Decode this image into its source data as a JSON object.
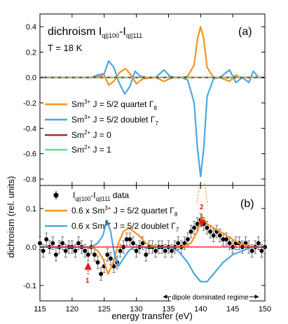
{
  "chart_data": [
    {
      "panel": "a",
      "type": "line",
      "panel_label": "(a)",
      "annotations": {
        "title": {
          "main": "dichroism I",
          "sub1": "q||100",
          "mid": "-I",
          "sub2": "q||111"
        },
        "temperature": "T = 18 K"
      },
      "xlim": [
        115,
        150
      ],
      "ylim": [
        -0.85,
        0.5
      ],
      "yticks": [
        "0.4",
        "0.2",
        "0.0",
        "-0.2",
        "-0.4",
        "-0.6",
        "-0.8"
      ],
      "ytick_values": [
        0.4,
        0.2,
        0.0,
        -0.2,
        -0.4,
        -0.6,
        -0.8
      ],
      "legend": [
        {
          "prefix": "Sm",
          "sup": "3+",
          "text": " J = 5/2 quartet Γ",
          "sub": "8",
          "color": "#f7931e"
        },
        {
          "prefix": "Sm",
          "sup": "3+",
          "text": " J = 5/2 doublet Γ",
          "sub": "7",
          "color": "#4aa8e0"
        },
        {
          "prefix": "Sm",
          "sup": "2+",
          "text": " J = 0",
          "sub": "",
          "color": "#a52a2a"
        },
        {
          "prefix": "Sm",
          "sup": "2+",
          "text": " J = 1",
          "sub": "",
          "color": "#66dd88"
        }
      ],
      "series": [
        {
          "name": "Sm3+ J = 5/2 quartet Γ8",
          "color": "#f7931e",
          "x": [
            115,
            123,
            124,
            125,
            125.7,
            126.5,
            127.4,
            128.3,
            129.2,
            130,
            131,
            133,
            134.3,
            135.2,
            136,
            137,
            138,
            139,
            139.5,
            140,
            140.5,
            141,
            142,
            143,
            144.5,
            145.5,
            146,
            147,
            148,
            150
          ],
          "y": [
            0,
            0,
            0.01,
            0.02,
            -0.06,
            -0.03,
            0.04,
            0.07,
            0.02,
            -0.05,
            -0.01,
            0,
            -0.03,
            -0.01,
            0,
            0,
            0.01,
            0.1,
            0.3,
            0.4,
            0.3,
            0.08,
            0,
            0,
            -0.03,
            0.02,
            0,
            0,
            0,
            0
          ]
        },
        {
          "name": "Sm3+ J = 5/2 doublet Γ7",
          "color": "#4aa8e0",
          "x": [
            115,
            123,
            124,
            125,
            125.7,
            126.5,
            127.3,
            128.2,
            129,
            129.8,
            130.6,
            131.5,
            133,
            134.3,
            135.2,
            136,
            137,
            138,
            139,
            139.5,
            140,
            140.5,
            141,
            142,
            143,
            144.5,
            145.5,
            146.5,
            147.5,
            148.2,
            149,
            150
          ],
          "y": [
            0,
            0,
            0.02,
            0.03,
            0.13,
            0.08,
            -0.04,
            -0.13,
            -0.07,
            0.05,
            0.01,
            0,
            0,
            0.06,
            0.01,
            0,
            0,
            -0.02,
            -0.2,
            -0.55,
            -0.78,
            -0.55,
            -0.15,
            -0.01,
            0,
            0.06,
            -0.04,
            0,
            -0.04,
            0.05,
            0,
            0
          ]
        },
        {
          "name": "Sm2+ J = 0",
          "color": "#a52a2a",
          "x": [
            115,
            150
          ],
          "y": [
            0,
            0
          ]
        },
        {
          "name": "Sm2+ J = 1",
          "color": "#66dd88",
          "x": [
            115,
            150
          ],
          "y": [
            0,
            0
          ]
        }
      ]
    },
    {
      "panel": "b",
      "type": "scatter",
      "panel_label": "(b)",
      "xlim": [
        115,
        150
      ],
      "ylim": [
        -0.14,
        0.16
      ],
      "yticks": [
        "0.1",
        "0.0",
        "-0.1"
      ],
      "ytick_values": [
        0.1,
        0.0,
        -0.1
      ],
      "xticks": [
        "115",
        "120",
        "125",
        "130",
        "135",
        "140",
        "145",
        "150"
      ],
      "xtick_values": [
        115,
        120,
        125,
        130,
        135,
        140,
        145,
        150
      ],
      "xlabel": "energy transfer (eV)",
      "ylabel": "dichroism (rel. units)",
      "legend": [
        {
          "kind": "data",
          "pre": "I",
          "sub1": "q||100",
          "mid": "-I",
          "sub2": "q||111",
          "tail": " data",
          "color": "#000000"
        },
        {
          "kind": "line",
          "prefix": "0.6 x Sm",
          "sup": "3+",
          "text": " J = 5/2 quartet Γ",
          "sub": "8",
          "color": "#f7931e"
        },
        {
          "kind": "line",
          "prefix": "0.6 x Sm",
          "sup": "3+",
          "text": " J = 5/2 doublet Γ",
          "sub": "7",
          "color": "#4aa8e0"
        }
      ],
      "annotations": {
        "marker1": "1",
        "marker2": "2",
        "regime": "dipole dominated regime"
      },
      "series": [
        {
          "name": "Iq||100-Iq||111 data",
          "color": "#000000",
          "x": [
            115,
            115.5,
            116,
            116.5,
            117,
            117.5,
            118,
            118.5,
            119,
            119.5,
            120,
            120.5,
            121,
            121.5,
            122,
            122.5,
            123,
            123.5,
            124,
            124.5,
            125,
            125.5,
            126,
            126.5,
            127,
            127.5,
            128,
            128.5,
            129,
            129.5,
            130,
            130.5,
            131,
            131.5,
            132,
            132.5,
            133,
            133.5,
            134,
            134.5,
            135,
            135.5,
            136,
            136.5,
            137,
            137.5,
            138,
            138.5,
            139,
            139.5,
            140,
            140.5,
            141,
            141.5,
            142,
            142.5,
            143,
            143.5,
            144,
            144.5,
            145,
            145.5,
            146,
            146.5,
            147,
            147.5,
            148,
            148.5,
            149,
            149.5,
            150
          ],
          "y": [
            0.01,
            -0.01,
            0.02,
            0.0,
            0.01,
            -0.02,
            0.0,
            0.01,
            -0.01,
            0.0,
            0.0,
            -0.01,
            0.01,
            0.0,
            -0.01,
            -0.02,
            0.0,
            -0.02,
            -0.04,
            -0.07,
            -0.05,
            -0.02,
            -0.03,
            -0.05,
            -0.04,
            -0.01,
            0.0,
            0.02,
            0.02,
            0.01,
            -0.01,
            0.0,
            0.01,
            -0.02,
            0.0,
            0.0,
            -0.01,
            0.0,
            0.0,
            -0.01,
            0.0,
            -0.01,
            0.0,
            0.01,
            0.0,
            0.01,
            0.02,
            0.04,
            0.05,
            0.06,
            0.07,
            0.06,
            0.05,
            0.04,
            0.03,
            0.04,
            0.03,
            0.02,
            0.02,
            0.01,
            0.0,
            0.01,
            0.01,
            0.0,
            0.01,
            0.0,
            -0.01,
            0.0,
            0.01,
            -0.01,
            0.0
          ]
        },
        {
          "name": "0.6 x Sm3+ J = 5/2 quartet Γ8",
          "color": "#f7931e",
          "x": [
            115,
            123,
            124,
            124.8,
            125.6,
            126.4,
            127.2,
            128,
            128.8,
            129.6,
            130.4,
            131.5,
            133,
            135,
            137,
            138.5,
            139.5,
            140.2,
            141,
            142,
            143,
            144,
            145,
            146,
            148,
            150
          ],
          "y": [
            0,
            0,
            -0.01,
            -0.03,
            -0.07,
            -0.04,
            0.01,
            0.04,
            0.05,
            0.04,
            0.03,
            0.01,
            0,
            0,
            0,
            0.01,
            0.04,
            0.08,
            0.06,
            0.05,
            0.04,
            0.03,
            0.02,
            0.01,
            0,
            0
          ]
        },
        {
          "name": "0.6 x Sm3+ J = 5/2 doublet Γ7",
          "color": "#4aa8e0",
          "x": [
            115,
            123,
            124,
            124.8,
            125.4,
            126,
            126.6,
            127.2,
            128,
            128.8,
            129.6,
            130.4,
            131.5,
            133,
            135,
            136.5,
            138,
            139,
            140,
            141,
            142,
            143.5,
            145,
            146.5,
            148,
            149,
            150
          ],
          "y": [
            0,
            0,
            0.01,
            0.03,
            0.07,
            0.04,
            -0.02,
            -0.05,
            -0.03,
            -0.01,
            0.0,
            0.0,
            0.0,
            0.0,
            0.0,
            -0.01,
            -0.04,
            -0.07,
            -0.09,
            -0.09,
            -0.07,
            -0.04,
            -0.02,
            -0.01,
            0,
            0,
            0
          ]
        },
        {
          "name": "reference zero",
          "color": "#ff0000",
          "x": [
            115,
            150
          ],
          "y": [
            0,
            0
          ]
        }
      ]
    }
  ]
}
